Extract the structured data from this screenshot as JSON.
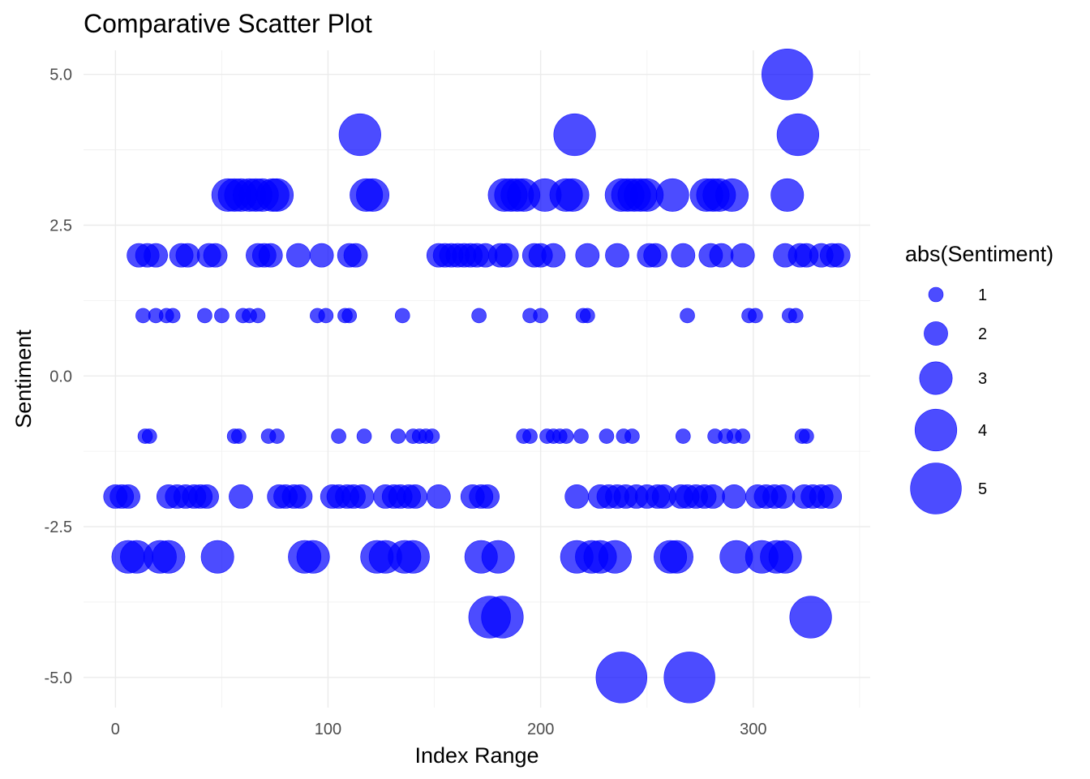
{
  "chart_data": {
    "type": "scatter",
    "title": "Comparative Scatter Plot",
    "xlabel": "Index Range",
    "ylabel": "Sentiment",
    "xlim": [
      -15,
      355
    ],
    "ylim": [
      -5.5,
      5.4
    ],
    "x_ticks": [
      0,
      100,
      200,
      300
    ],
    "x_tick_labels": [
      "0",
      "100",
      "200",
      "300"
    ],
    "y_ticks": [
      5,
      2.5,
      0,
      -2.5,
      -5
    ],
    "y_tick_labels": [
      "5.0",
      "2.5",
      "0.0",
      "-2.5",
      "-5.0"
    ],
    "grid": true,
    "point_color": "#0000ff",
    "point_alpha": 0.7,
    "size_variable": "abs(Sentiment)",
    "legend": {
      "title": "abs(Sentiment)",
      "position": "right",
      "entries": [
        {
          "label": "1",
          "value": 1
        },
        {
          "label": "2",
          "value": 2
        },
        {
          "label": "3",
          "value": 3
        },
        {
          "label": "4",
          "value": 4
        },
        {
          "label": "5",
          "value": 5
        }
      ]
    },
    "points": [
      {
        "x": 316,
        "y": 5
      },
      {
        "x": 115,
        "y": 4
      },
      {
        "x": 216,
        "y": 4
      },
      {
        "x": 321,
        "y": 4
      },
      {
        "x": 53,
        "y": 3
      },
      {
        "x": 56,
        "y": 3
      },
      {
        "x": 59,
        "y": 3
      },
      {
        "x": 63,
        "y": 3
      },
      {
        "x": 66,
        "y": 3
      },
      {
        "x": 69,
        "y": 3
      },
      {
        "x": 74,
        "y": 3
      },
      {
        "x": 76,
        "y": 3
      },
      {
        "x": 118,
        "y": 3
      },
      {
        "x": 121,
        "y": 3
      },
      {
        "x": 183,
        "y": 3
      },
      {
        "x": 186,
        "y": 3
      },
      {
        "x": 189,
        "y": 3
      },
      {
        "x": 192,
        "y": 3
      },
      {
        "x": 202,
        "y": 3
      },
      {
        "x": 212,
        "y": 3
      },
      {
        "x": 215,
        "y": 3
      },
      {
        "x": 238,
        "y": 3
      },
      {
        "x": 241,
        "y": 3
      },
      {
        "x": 244,
        "y": 3
      },
      {
        "x": 247,
        "y": 3
      },
      {
        "x": 250,
        "y": 3
      },
      {
        "x": 262,
        "y": 3
      },
      {
        "x": 278,
        "y": 3
      },
      {
        "x": 281,
        "y": 3
      },
      {
        "x": 284,
        "y": 3
      },
      {
        "x": 290,
        "y": 3
      },
      {
        "x": 316,
        "y": 3
      },
      {
        "x": 11,
        "y": 2
      },
      {
        "x": 15,
        "y": 2
      },
      {
        "x": 19,
        "y": 2
      },
      {
        "x": 31,
        "y": 2
      },
      {
        "x": 34,
        "y": 2
      },
      {
        "x": 44,
        "y": 2
      },
      {
        "x": 47,
        "y": 2
      },
      {
        "x": 67,
        "y": 2
      },
      {
        "x": 70,
        "y": 2
      },
      {
        "x": 73,
        "y": 2
      },
      {
        "x": 86,
        "y": 2
      },
      {
        "x": 97,
        "y": 2
      },
      {
        "x": 110,
        "y": 2
      },
      {
        "x": 113,
        "y": 2
      },
      {
        "x": 152,
        "y": 2
      },
      {
        "x": 155,
        "y": 2
      },
      {
        "x": 158,
        "y": 2
      },
      {
        "x": 161,
        "y": 2
      },
      {
        "x": 164,
        "y": 2
      },
      {
        "x": 167,
        "y": 2
      },
      {
        "x": 170,
        "y": 2
      },
      {
        "x": 174,
        "y": 2
      },
      {
        "x": 181,
        "y": 2
      },
      {
        "x": 184,
        "y": 2
      },
      {
        "x": 197,
        "y": 2
      },
      {
        "x": 200,
        "y": 2
      },
      {
        "x": 206,
        "y": 2
      },
      {
        "x": 222,
        "y": 2
      },
      {
        "x": 236,
        "y": 2
      },
      {
        "x": 251,
        "y": 2
      },
      {
        "x": 254,
        "y": 2
      },
      {
        "x": 267,
        "y": 2
      },
      {
        "x": 280,
        "y": 2
      },
      {
        "x": 285,
        "y": 2
      },
      {
        "x": 295,
        "y": 2
      },
      {
        "x": 315,
        "y": 2
      },
      {
        "x": 322,
        "y": 2
      },
      {
        "x": 325,
        "y": 2
      },
      {
        "x": 332,
        "y": 2
      },
      {
        "x": 337,
        "y": 2
      },
      {
        "x": 340,
        "y": 2
      },
      {
        "x": 13,
        "y": 1
      },
      {
        "x": 19,
        "y": 1
      },
      {
        "x": 24,
        "y": 1
      },
      {
        "x": 27,
        "y": 1
      },
      {
        "x": 42,
        "y": 1
      },
      {
        "x": 50,
        "y": 1
      },
      {
        "x": 60,
        "y": 1
      },
      {
        "x": 63,
        "y": 1
      },
      {
        "x": 67,
        "y": 1
      },
      {
        "x": 95,
        "y": 1
      },
      {
        "x": 99,
        "y": 1
      },
      {
        "x": 108,
        "y": 1
      },
      {
        "x": 110,
        "y": 1
      },
      {
        "x": 135,
        "y": 1
      },
      {
        "x": 171,
        "y": 1
      },
      {
        "x": 195,
        "y": 1
      },
      {
        "x": 200,
        "y": 1
      },
      {
        "x": 220,
        "y": 1
      },
      {
        "x": 222,
        "y": 1
      },
      {
        "x": 269,
        "y": 1
      },
      {
        "x": 298,
        "y": 1
      },
      {
        "x": 301,
        "y": 1
      },
      {
        "x": 317,
        "y": 1
      },
      {
        "x": 320,
        "y": 1
      },
      {
        "x": 14,
        "y": -1
      },
      {
        "x": 16,
        "y": -1
      },
      {
        "x": 56,
        "y": -1
      },
      {
        "x": 58,
        "y": -1
      },
      {
        "x": 72,
        "y": -1
      },
      {
        "x": 76,
        "y": -1
      },
      {
        "x": 105,
        "y": -1
      },
      {
        "x": 117,
        "y": -1
      },
      {
        "x": 133,
        "y": -1
      },
      {
        "x": 140,
        "y": -1
      },
      {
        "x": 143,
        "y": -1
      },
      {
        "x": 146,
        "y": -1
      },
      {
        "x": 149,
        "y": -1
      },
      {
        "x": 192,
        "y": -1
      },
      {
        "x": 195,
        "y": -1
      },
      {
        "x": 203,
        "y": -1
      },
      {
        "x": 206,
        "y": -1
      },
      {
        "x": 209,
        "y": -1
      },
      {
        "x": 212,
        "y": -1
      },
      {
        "x": 219,
        "y": -1
      },
      {
        "x": 231,
        "y": -1
      },
      {
        "x": 239,
        "y": -1
      },
      {
        "x": 243,
        "y": -1
      },
      {
        "x": 267,
        "y": -1
      },
      {
        "x": 282,
        "y": -1
      },
      {
        "x": 287,
        "y": -1
      },
      {
        "x": 291,
        "y": -1
      },
      {
        "x": 295,
        "y": -1
      },
      {
        "x": 323,
        "y": -1
      },
      {
        "x": 325,
        "y": -1
      },
      {
        "x": 0,
        "y": -2
      },
      {
        "x": 3,
        "y": -2
      },
      {
        "x": 6,
        "y": -2
      },
      {
        "x": 25,
        "y": -2
      },
      {
        "x": 29,
        "y": -2
      },
      {
        "x": 33,
        "y": -2
      },
      {
        "x": 37,
        "y": -2
      },
      {
        "x": 40,
        "y": -2
      },
      {
        "x": 43,
        "y": -2
      },
      {
        "x": 59,
        "y": -2
      },
      {
        "x": 77,
        "y": -2
      },
      {
        "x": 80,
        "y": -2
      },
      {
        "x": 84,
        "y": -2
      },
      {
        "x": 87,
        "y": -2
      },
      {
        "x": 102,
        "y": -2
      },
      {
        "x": 105,
        "y": -2
      },
      {
        "x": 109,
        "y": -2
      },
      {
        "x": 112,
        "y": -2
      },
      {
        "x": 116,
        "y": -2
      },
      {
        "x": 127,
        "y": -2
      },
      {
        "x": 131,
        "y": -2
      },
      {
        "x": 134,
        "y": -2
      },
      {
        "x": 138,
        "y": -2
      },
      {
        "x": 141,
        "y": -2
      },
      {
        "x": 152,
        "y": -2
      },
      {
        "x": 168,
        "y": -2
      },
      {
        "x": 172,
        "y": -2
      },
      {
        "x": 175,
        "y": -2
      },
      {
        "x": 217,
        "y": -2
      },
      {
        "x": 228,
        "y": -2
      },
      {
        "x": 232,
        "y": -2
      },
      {
        "x": 236,
        "y": -2
      },
      {
        "x": 240,
        "y": -2
      },
      {
        "x": 245,
        "y": -2
      },
      {
        "x": 250,
        "y": -2
      },
      {
        "x": 255,
        "y": -2
      },
      {
        "x": 258,
        "y": -2
      },
      {
        "x": 266,
        "y": -2
      },
      {
        "x": 269,
        "y": -2
      },
      {
        "x": 273,
        "y": -2
      },
      {
        "x": 277,
        "y": -2
      },
      {
        "x": 281,
        "y": -2
      },
      {
        "x": 291,
        "y": -2
      },
      {
        "x": 302,
        "y": -2
      },
      {
        "x": 306,
        "y": -2
      },
      {
        "x": 310,
        "y": -2
      },
      {
        "x": 314,
        "y": -2
      },
      {
        "x": 324,
        "y": -2
      },
      {
        "x": 328,
        "y": -2
      },
      {
        "x": 332,
        "y": -2
      },
      {
        "x": 336,
        "y": -2
      },
      {
        "x": 6,
        "y": -3
      },
      {
        "x": 10,
        "y": -3
      },
      {
        "x": 21,
        "y": -3
      },
      {
        "x": 25,
        "y": -3
      },
      {
        "x": 48,
        "y": -3
      },
      {
        "x": 89,
        "y": -3
      },
      {
        "x": 93,
        "y": -3
      },
      {
        "x": 123,
        "y": -3
      },
      {
        "x": 127,
        "y": -3
      },
      {
        "x": 136,
        "y": -3
      },
      {
        "x": 140,
        "y": -3
      },
      {
        "x": 172,
        "y": -3
      },
      {
        "x": 180,
        "y": -3
      },
      {
        "x": 217,
        "y": -3
      },
      {
        "x": 224,
        "y": -3
      },
      {
        "x": 228,
        "y": -3
      },
      {
        "x": 235,
        "y": -3
      },
      {
        "x": 261,
        "y": -3
      },
      {
        "x": 264,
        "y": -3
      },
      {
        "x": 292,
        "y": -3
      },
      {
        "x": 304,
        "y": -3
      },
      {
        "x": 311,
        "y": -3
      },
      {
        "x": 315,
        "y": -3
      },
      {
        "x": 176,
        "y": -4
      },
      {
        "x": 182,
        "y": -4
      },
      {
        "x": 327,
        "y": -4
      },
      {
        "x": 238,
        "y": -5
      },
      {
        "x": 270,
        "y": -5
      }
    ]
  }
}
